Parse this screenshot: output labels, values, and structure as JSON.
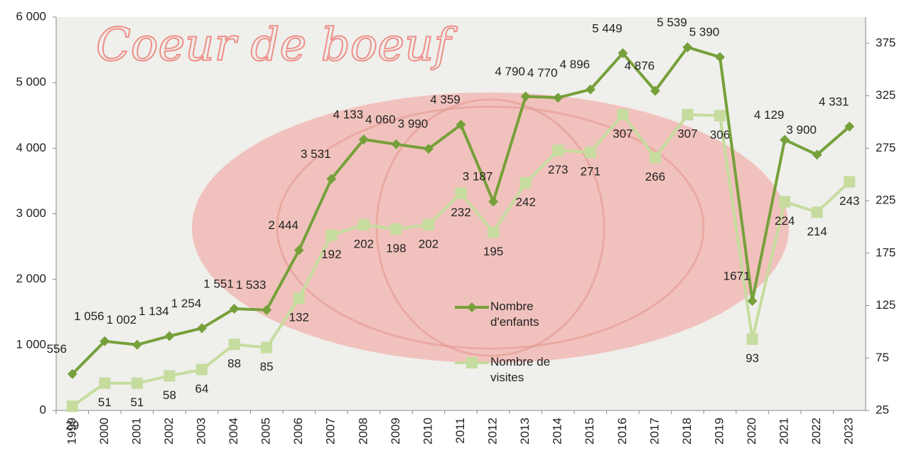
{
  "chart_data": {
    "type": "line",
    "annotation": "Coeur de boeuf",
    "categories": [
      "1999",
      "2000",
      "2001",
      "2002",
      "2003",
      "2004",
      "2005",
      "2006",
      "2007",
      "2008",
      "2009",
      "2010",
      "2011",
      "2012",
      "2013",
      "2014",
      "2015",
      "2016",
      "2017",
      "2018",
      "2019",
      "2020",
      "2021",
      "2022",
      "2023"
    ],
    "series": [
      {
        "name": "Nombre d'enfants",
        "color": "#76a03a",
        "marker": "diamond",
        "values": [
          556,
          1056,
          1002,
          1134,
          1254,
          1551,
          1533,
          2444,
          3531,
          4133,
          4060,
          3990,
          4359,
          3187,
          4790,
          4770,
          4896,
          5449,
          4876,
          5539,
          5390,
          1671,
          4129,
          3900,
          4331
        ],
        "value_labels": [
          "556",
          "1 056",
          "1 002",
          "1 134",
          "1 254",
          "1 551",
          "1 533",
          "2 444",
          "3 531",
          "4 133",
          "4 060",
          "3 990",
          "4 359",
          "3 187",
          "4 790",
          "4 770",
          "4 896",
          "5 449",
          "4 876",
          "5 539",
          "5 390",
          "1671",
          "4 129",
          "3 900",
          "4 331"
        ]
      },
      {
        "name": "Nombre de visites",
        "color": "#c5dc9e",
        "marker": "square",
        "axis": "y2",
        "values": [
          29,
          51,
          51,
          58,
          64,
          88,
          85,
          132,
          192,
          202,
          198,
          202,
          232,
          195,
          242,
          273,
          271,
          307,
          266,
          307,
          306,
          93,
          224,
          214,
          243
        ]
      }
    ],
    "ylim": [
      0,
      6000
    ],
    "yticks": [
      0,
      {
        "value": 1000,
        "label": "1 000"
      },
      {
        "value": 2000,
        "label": "2 000"
      },
      {
        "value": 3000,
        "label": "3 000"
      },
      {
        "value": 4000,
        "label": "4 000"
      },
      {
        "value": 5000,
        "label": "5 000"
      },
      {
        "value": 6000,
        "label": "6 000"
      }
    ],
    "y2lim": [
      25,
      400
    ],
    "y2ticks": [
      25,
      75,
      125,
      175,
      225,
      275,
      325,
      375
    ],
    "grid": false
  }
}
